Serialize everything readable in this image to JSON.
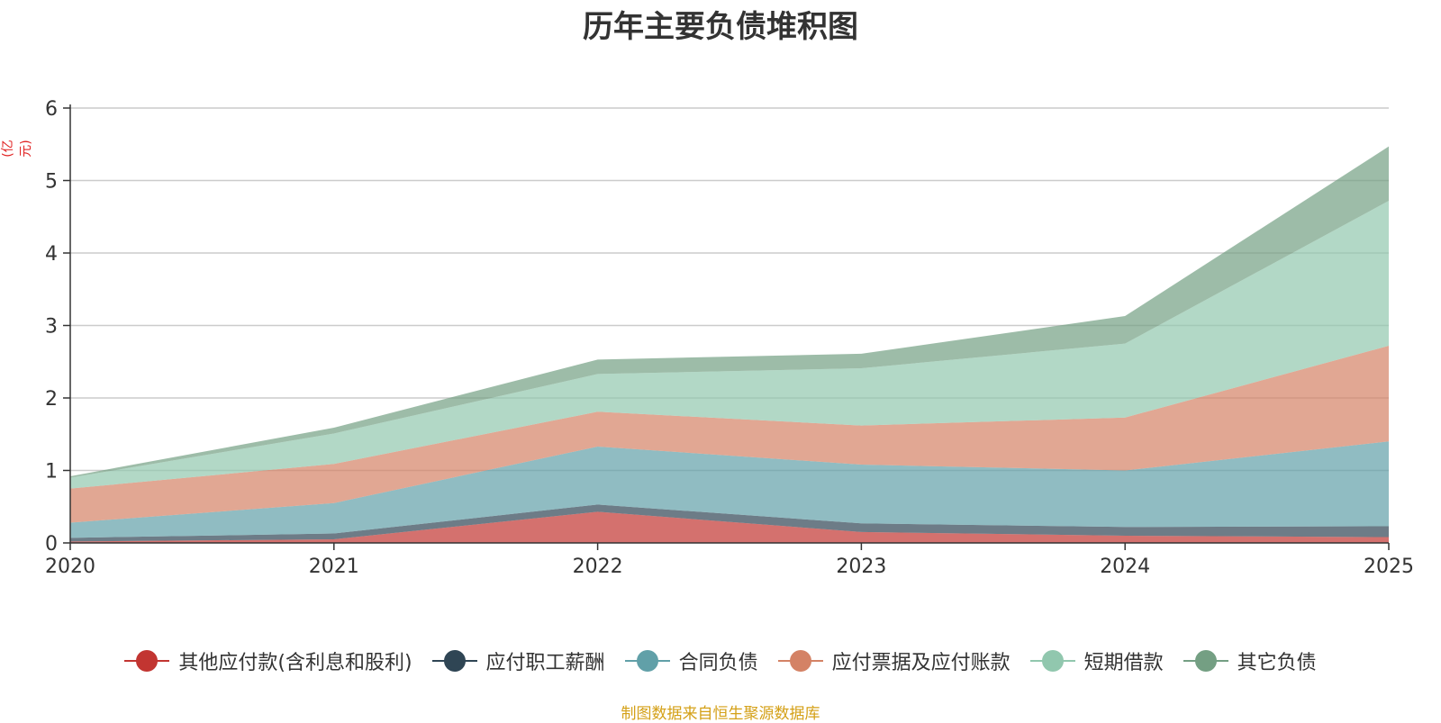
{
  "chart_data": {
    "type": "area",
    "stacked": true,
    "title": "历年主要负债堆积图",
    "ylabel": "(亿元)",
    "xlabel": "",
    "categories": [
      "2020",
      "2021",
      "2022",
      "2023",
      "2024",
      "2025"
    ],
    "ylim": [
      0,
      6
    ],
    "yticks": [
      0,
      1,
      2,
      3,
      4,
      5,
      6
    ],
    "grid": true,
    "legend_position": "bottom",
    "series": [
      {
        "name": "其他应付款(含利息和股利)",
        "color": "#c23531",
        "values": [
          0.02,
          0.05,
          0.43,
          0.15,
          0.1,
          0.08
        ]
      },
      {
        "name": "应付职工薪酬",
        "color": "#2f4554",
        "values": [
          0.05,
          0.08,
          0.1,
          0.12,
          0.12,
          0.15
        ]
      },
      {
        "name": "合同负债",
        "color": "#61a0a8",
        "values": [
          0.21,
          0.42,
          0.8,
          0.81,
          0.78,
          1.17
        ]
      },
      {
        "name": "应付票据及应付账款",
        "color": "#d48265",
        "values": [
          0.47,
          0.54,
          0.48,
          0.54,
          0.73,
          1.32
        ]
      },
      {
        "name": "短期借款",
        "color": "#91c7ae",
        "values": [
          0.15,
          0.42,
          0.52,
          0.79,
          1.02,
          2.0
        ]
      },
      {
        "name": "其它负债",
        "color": "#749f83",
        "values": [
          0.02,
          0.08,
          0.2,
          0.2,
          0.38,
          0.75
        ]
      }
    ]
  },
  "source_note": "制图数据来自恒生聚源数据库"
}
